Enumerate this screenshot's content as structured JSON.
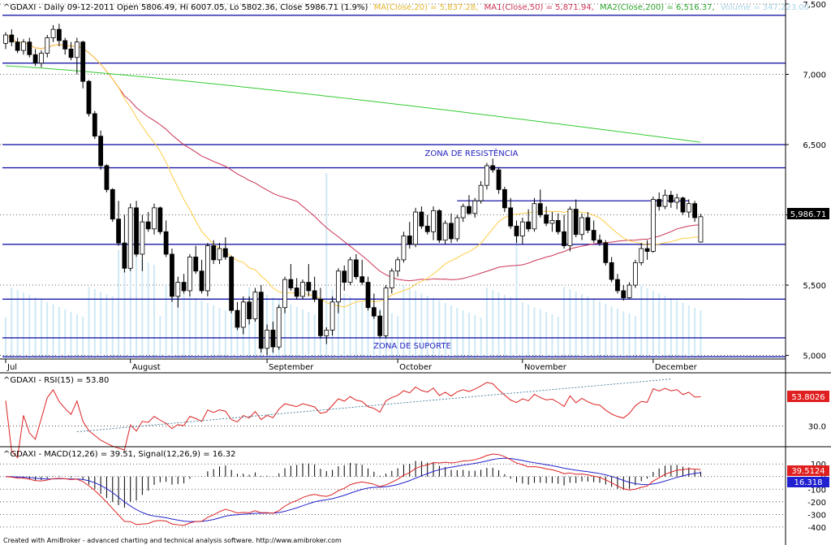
{
  "chart_data": [
    {
      "type": "candlestick",
      "ticker": "^GDAXI",
      "title": "^GDAXI - Daily 09-12-2011 Open 5806.49, Hi 6007.05, Lo 5802.36, Close 5986.71 (1.9%)",
      "legend": [
        {
          "label": "MA(Close,20) = 5,837.28,",
          "color": "#ffcc44"
        },
        {
          "label": "MA1(Close,50) = 5,871.94,",
          "color": "#cc3355"
        },
        {
          "label": "MA2(Close,200) = 6,516.37,",
          "color": "#33cc33"
        },
        {
          "label": "Volume = 347,223.00",
          "color": "#cfe9f5"
        }
      ],
      "ylim": [
        4980,
        7500
      ],
      "yticks": [
        "7,500",
        "7,000",
        "6,500",
        "6,000",
        "5,500",
        "5,000"
      ],
      "yticks_values": [
        7500,
        7000,
        6500,
        6000,
        5500,
        5000
      ],
      "xticks": [
        {
          "label": "Jul",
          "day": 0
        },
        {
          "label": "August",
          "day": 21
        },
        {
          "label": "September",
          "day": 44
        },
        {
          "label": "October",
          "day": 66
        },
        {
          "label": "November",
          "day": 87
        },
        {
          "label": "December",
          "day": 109
        }
      ],
      "last_price_label": "5,986.71",
      "last_price": 5986.71,
      "horizontal_lines": [
        7420,
        7080,
        6500,
        6335,
        5790,
        5400,
        5125,
        4990
      ],
      "short_lines": [
        {
          "y": 6100,
          "from_day": 76,
          "to_day": 115
        },
        {
          "y": 5400,
          "from_day": 28,
          "to_day": 124
        }
      ],
      "annotations": [
        {
          "text": "ZONA DE RESISTÊNCIA",
          "day": 86.5,
          "y": 6420
        },
        {
          "text": "ZONA DE SUPORTE",
          "day": 69.3,
          "y": 5025
        }
      ],
      "ohlc": [
        [
          7220,
          7300,
          7180,
          7280
        ],
        [
          7280,
          7320,
          7200,
          7230
        ],
        [
          7230,
          7260,
          7150,
          7170
        ],
        [
          7170,
          7250,
          7140,
          7230
        ],
        [
          7230,
          7260,
          7120,
          7140
        ],
        [
          7140,
          7180,
          7060,
          7080
        ],
        [
          7080,
          7170,
          7050,
          7150
        ],
        [
          7150,
          7280,
          7120,
          7260
        ],
        [
          7260,
          7350,
          7230,
          7320
        ],
        [
          7320,
          7360,
          7200,
          7240
        ],
        [
          7240,
          7260,
          7140,
          7180
        ],
        [
          7180,
          7230,
          7100,
          7120
        ],
        [
          7120,
          7260,
          7000,
          7230
        ],
        [
          7230,
          7240,
          6900,
          6950
        ],
        [
          6950,
          6960,
          6700,
          6720
        ],
        [
          6720,
          6740,
          6540,
          6560
        ],
        [
          6560,
          6600,
          6320,
          6350
        ],
        [
          6350,
          6360,
          6160,
          6180
        ],
        [
          6180,
          6190,
          5950,
          5970
        ],
        [
          5970,
          6100,
          5780,
          5800
        ],
        [
          5800,
          6000,
          5590,
          5620
        ],
        [
          5620,
          6080,
          5600,
          6050
        ],
        [
          6050,
          6100,
          5700,
          5720
        ],
        [
          5720,
          6000,
          5600,
          5950
        ],
        [
          5950,
          6020,
          5880,
          5900
        ],
        [
          5900,
          6080,
          5860,
          6050
        ],
        [
          6050,
          6060,
          5860,
          5880
        ],
        [
          5880,
          5960,
          5700,
          5720
        ],
        [
          5720,
          5760,
          5380,
          5420
        ],
        [
          5420,
          5560,
          5340,
          5520
        ],
        [
          5520,
          5580,
          5440,
          5460
        ],
        [
          5460,
          5720,
          5420,
          5700
        ],
        [
          5700,
          5780,
          5580,
          5600
        ],
        [
          5600,
          5680,
          5440,
          5460
        ],
        [
          5460,
          5800,
          5420,
          5780
        ],
        [
          5780,
          5820,
          5650,
          5680
        ],
        [
          5680,
          5800,
          5650,
          5760
        ],
        [
          5760,
          5840,
          5680,
          5700
        ],
        [
          5700,
          5710,
          5300,
          5320
        ],
        [
          5320,
          5380,
          5180,
          5200
        ],
        [
          5200,
          5420,
          5150,
          5380
        ],
        [
          5380,
          5420,
          5220,
          5260
        ],
        [
          5260,
          5480,
          5240,
          5450
        ],
        [
          5450,
          5500,
          5020,
          5050
        ],
        [
          5050,
          5220,
          5000,
          5180
        ],
        [
          5180,
          5240,
          5020,
          5060
        ],
        [
          5060,
          5360,
          5040,
          5340
        ],
        [
          5340,
          5560,
          5300,
          5540
        ],
        [
          5540,
          5650,
          5460,
          5480
        ],
        [
          5480,
          5550,
          5400,
          5420
        ],
        [
          5420,
          5540,
          5400,
          5520
        ],
        [
          5520,
          5650,
          5420,
          5460
        ],
        [
          5460,
          5560,
          5380,
          5400
        ],
        [
          5400,
          5480,
          5120,
          5140
        ],
        [
          5140,
          5200,
          5080,
          5180
        ],
        [
          5180,
          5420,
          5140,
          5380
        ],
        [
          5380,
          5620,
          5300,
          5600
        ],
        [
          5600,
          5640,
          5460,
          5520
        ],
        [
          5520,
          5700,
          5500,
          5680
        ],
        [
          5680,
          5720,
          5540,
          5560
        ],
        [
          5560,
          5680,
          5500,
          5520
        ],
        [
          5520,
          5560,
          5320,
          5340
        ],
        [
          5340,
          5440,
          5260,
          5280
        ],
        [
          5280,
          5320,
          5120,
          5140
        ],
        [
          5140,
          5500,
          5120,
          5480
        ],
        [
          5480,
          5620,
          5440,
          5600
        ],
        [
          5600,
          5700,
          5560,
          5680
        ],
        [
          5680,
          5880,
          5660,
          5850
        ],
        [
          5850,
          5950,
          5760,
          5790
        ],
        [
          5790,
          6050,
          5770,
          6020
        ],
        [
          6020,
          6060,
          5900,
          5920
        ],
        [
          5920,
          6000,
          5860,
          5880
        ],
        [
          5880,
          6060,
          5820,
          6030
        ],
        [
          6030,
          6040,
          5800,
          5820
        ],
        [
          5820,
          5960,
          5790,
          5940
        ],
        [
          5940,
          6010,
          5800,
          5830
        ],
        [
          5830,
          6000,
          5810,
          5980
        ],
        [
          5980,
          6080,
          5950,
          6060
        ],
        [
          6060,
          6140,
          6000,
          6010
        ],
        [
          6010,
          6120,
          5980,
          6100
        ],
        [
          6100,
          6240,
          6080,
          6210
        ],
        [
          6210,
          6370,
          6180,
          6350
        ],
        [
          6350,
          6400,
          6300,
          6320
        ],
        [
          6320,
          6340,
          6150,
          6180
        ],
        [
          6180,
          6200,
          6020,
          6050
        ],
        [
          6050,
          6120,
          5900,
          5920
        ],
        [
          5920,
          5960,
          5800,
          5850
        ],
        [
          5850,
          5980,
          5790,
          5950
        ],
        [
          5950,
          6040,
          5880,
          5900
        ],
        [
          5900,
          6120,
          5880,
          6080
        ],
        [
          6080,
          6180,
          5980,
          6000
        ],
        [
          6000,
          6060,
          5920,
          5940
        ],
        [
          5940,
          6020,
          5880,
          5960
        ],
        [
          5960,
          6010,
          5860,
          5880
        ],
        [
          5880,
          6000,
          5760,
          5780
        ],
        [
          5780,
          6060,
          5740,
          6040
        ],
        [
          6040,
          6110,
          5840,
          5860
        ],
        [
          5860,
          6010,
          5820,
          5980
        ],
        [
          5980,
          6020,
          5870,
          5890
        ],
        [
          5890,
          5960,
          5800,
          5820
        ],
        [
          5820,
          5860,
          5780,
          5800
        ],
        [
          5800,
          5820,
          5640,
          5660
        ],
        [
          5660,
          5700,
          5520,
          5540
        ],
        [
          5540,
          5580,
          5440,
          5460
        ],
        [
          5460,
          5500,
          5390,
          5410
        ],
        [
          5410,
          5520,
          5400,
          5500
        ],
        [
          5500,
          5680,
          5480,
          5660
        ],
        [
          5660,
          5800,
          5640,
          5760
        ],
        [
          5760,
          5820,
          5680,
          5740
        ],
        [
          5740,
          6130,
          5730,
          6110
        ],
        [
          6110,
          6160,
          6030,
          6060
        ],
        [
          6060,
          6180,
          6040,
          6140
        ],
        [
          6140,
          6170,
          6050,
          6090
        ],
        [
          6090,
          6150,
          6040,
          6120
        ],
        [
          6120,
          6130,
          6000,
          6020
        ],
        [
          6020,
          6110,
          5980,
          6080
        ],
        [
          6080,
          6100,
          5950,
          5980
        ],
        [
          5806.49,
          6007.05,
          5802.36,
          5986.71
        ]
      ]
    },
    {
      "type": "line",
      "title": "^GDAXI - RSI(15) = 53.80",
      "series": [
        {
          "name": "RSI(15)",
          "color": "#dd2222"
        }
      ],
      "trendline": {
        "from": [
          12,
          25.5
        ],
        "to": [
          112,
          67
        ]
      },
      "ylim": [
        15,
        70
      ],
      "yticks": [
        "30.0"
      ],
      "yticks_values": [
        30
      ],
      "last_value_label": "53.8026",
      "last_value": 53.8026
    },
    {
      "type": "line",
      "title": "^GDAXI - MACD(12,26) = 39.51, Signal(12,26,9) = 16.32",
      "series": [
        {
          "name": "MACD(12,26)",
          "color": "#dd2222"
        },
        {
          "name": "Signal(12,26,9)",
          "color": "#2222cc"
        },
        {
          "name": "",
          "type": "histogram",
          "color": "#000000"
        }
      ],
      "ylim": [
        -420,
        140
      ],
      "yticks": [
        "100",
        "0",
        "-100",
        "-200",
        "-300",
        "-400"
      ],
      "yticks_values": [
        100,
        0,
        -100,
        -200,
        -300,
        -400
      ],
      "last_values": [
        {
          "label": "39.5124",
          "value": 39.5124,
          "color": "#dd2222"
        },
        {
          "label": "16.318",
          "value": 16.318,
          "color": "#2222cc"
        }
      ]
    }
  ],
  "footer": "Created with AmiBroker - advanced charting and technical analysis software. http://www.amibroker.com"
}
